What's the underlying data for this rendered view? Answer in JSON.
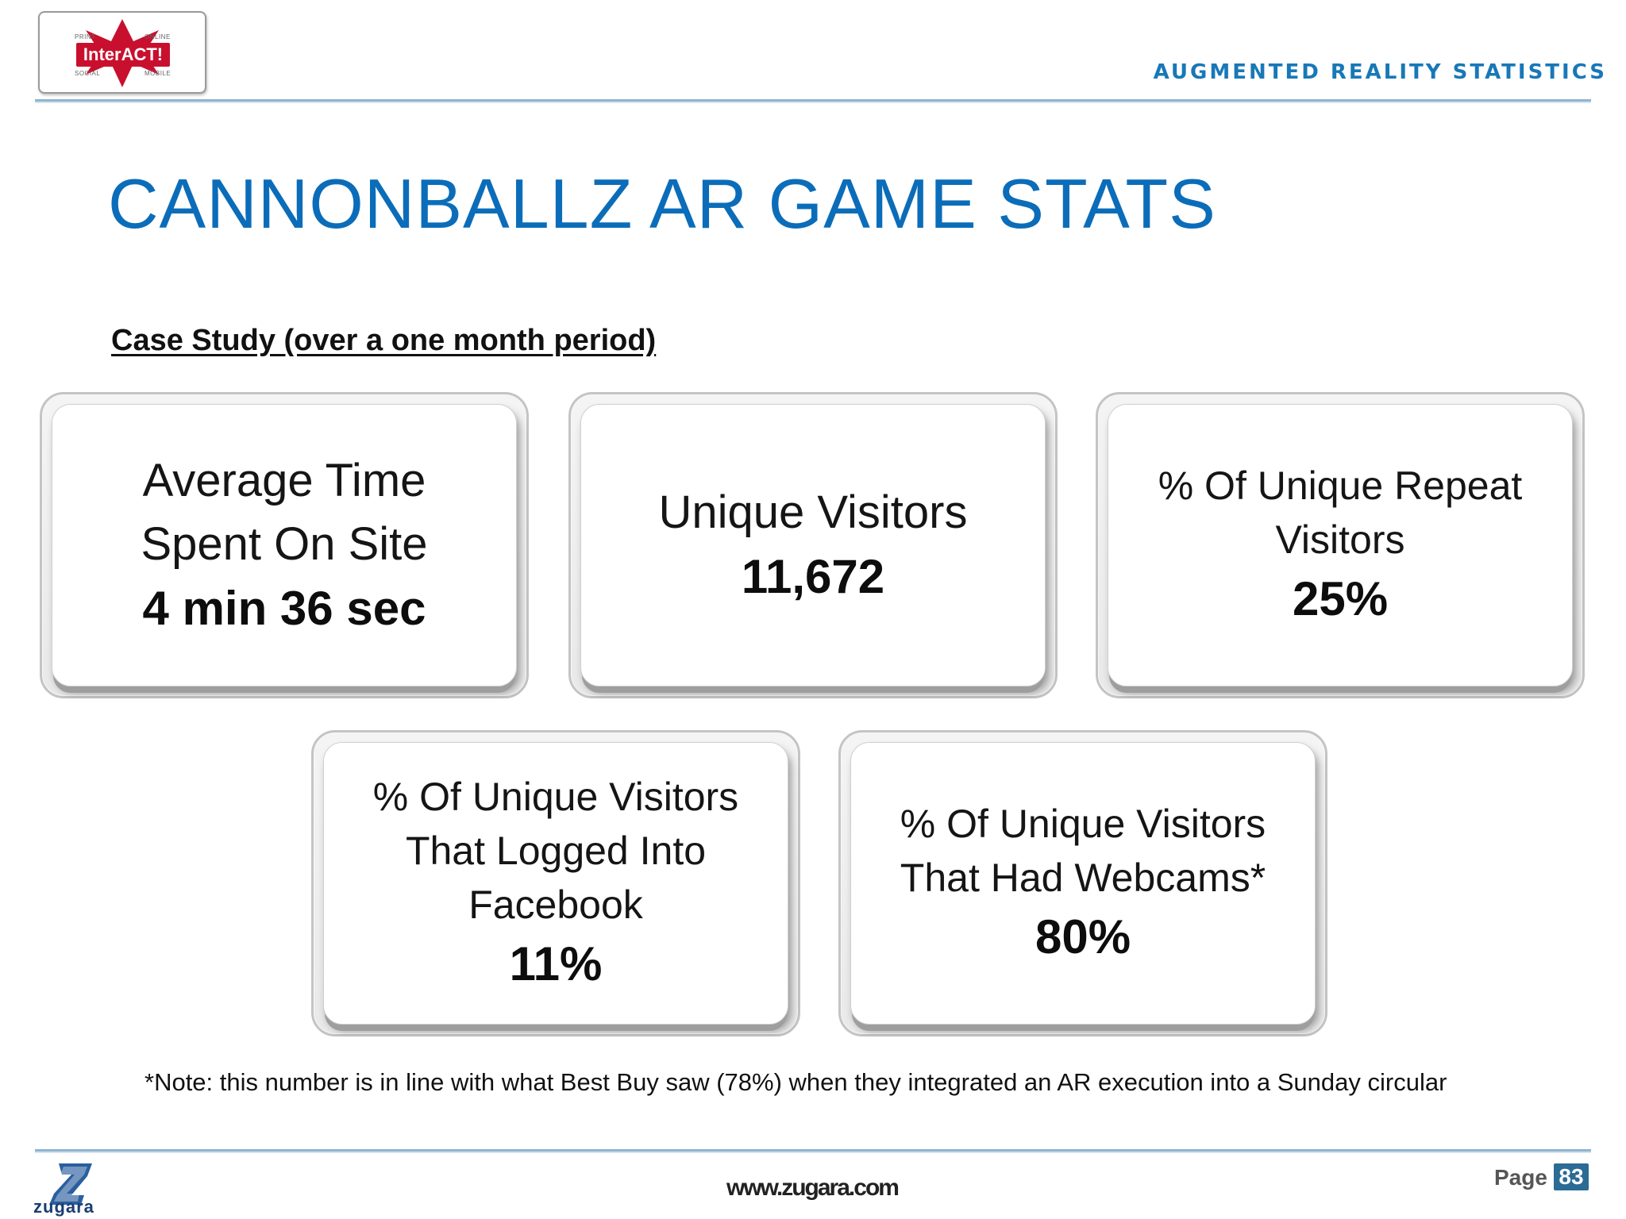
{
  "header": {
    "logo": {
      "word": "InterACT!",
      "corners": [
        "PRINT",
        "ONLINE",
        "SOCIAL",
        "MOBILE"
      ],
      "color": "#c8102e"
    },
    "tag": "AUGMENTED REALITY STATISTICS"
  },
  "title": "CANNONBALLZ AR GAME STATS",
  "subtitle": "Case Study (over a one month period)",
  "cards": [
    {
      "label_lines": [
        "Average Time",
        "Spent On Site"
      ],
      "value": "4 min 36 sec"
    },
    {
      "label_lines": [
        "Unique Visitors"
      ],
      "value": "11,672"
    },
    {
      "label_lines": [
        "% Of Unique Repeat",
        "Visitors"
      ],
      "value": "25%"
    },
    {
      "label_lines": [
        "% Of Unique Visitors",
        "That Logged Into",
        "Facebook"
      ],
      "value": "11%"
    },
    {
      "label_lines": [
        "% Of Unique Visitors",
        "That Had Webcams*"
      ],
      "value": "80%"
    }
  ],
  "note": "*Note: this number is in line with what Best Buy saw (78%) when they integrated an AR execution into a Sunday circular",
  "footer": {
    "brand": "zugara",
    "url": "www.zugara.com",
    "page_label": "Page",
    "page_number": "83"
  },
  "colors": {
    "title": "#0b6db9",
    "tag": "#1878b8",
    "rule": "#8fb4cf",
    "page_badge": "#2c6b94"
  }
}
